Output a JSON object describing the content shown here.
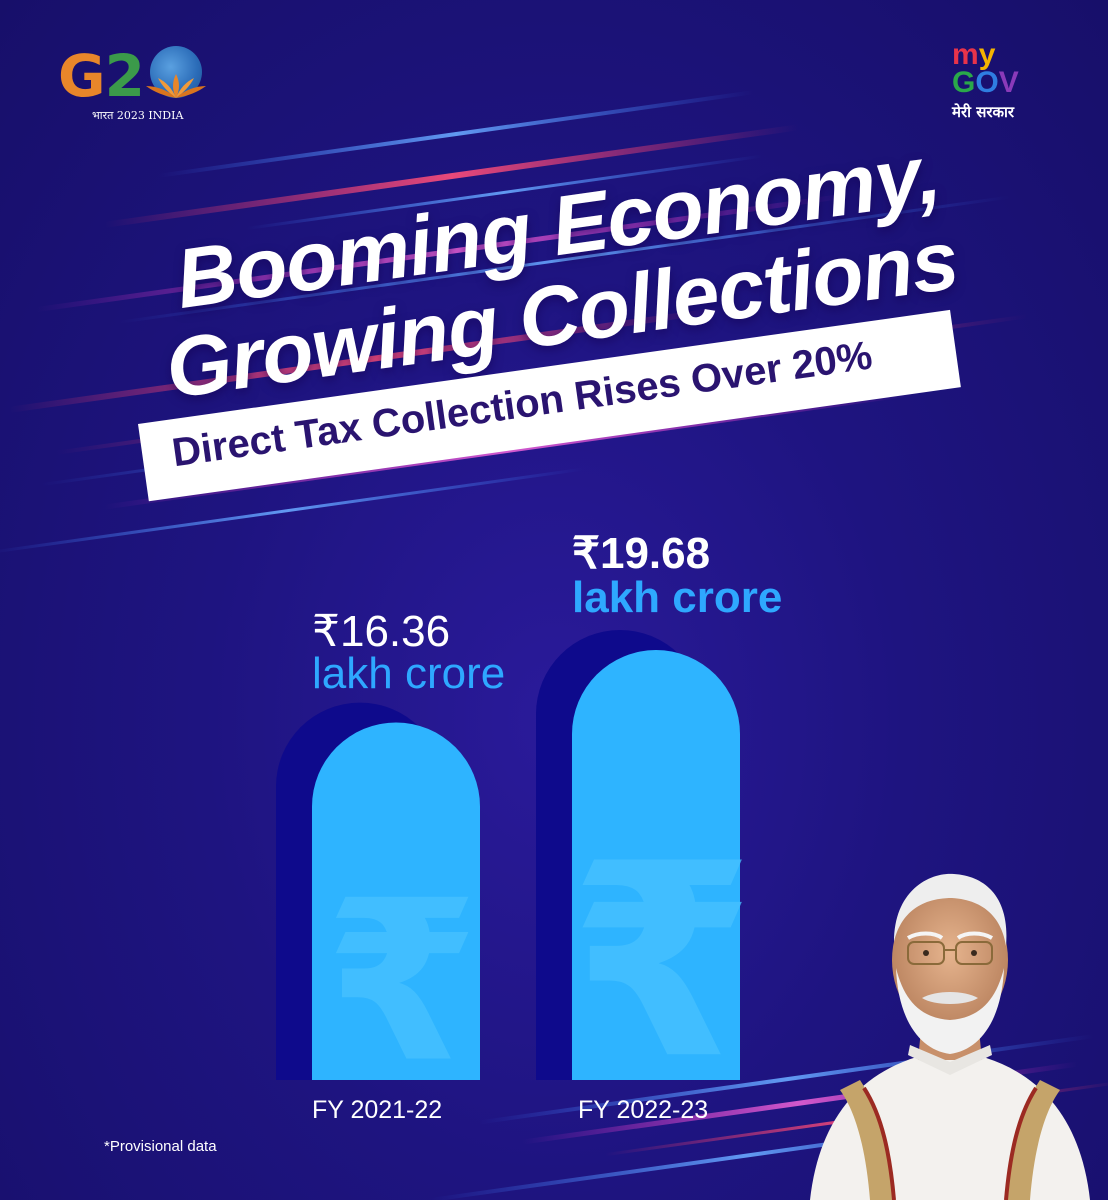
{
  "logos": {
    "g20": {
      "letters_g": "G",
      "letters_2": "2",
      "subtitle": "भारत 2023 INDIA",
      "colors": {
        "g": "#e8862a",
        "two": "#3b9a4a",
        "globe": "#2b6cb8",
        "lotus": "#e8862a"
      }
    },
    "mygov": {
      "my": "my",
      "gov": "GOV",
      "subtitle": "मेरी सरकार",
      "colors": {
        "m": "#e8334a",
        "y": "#f4b400",
        "g": "#2aa84a",
        "o": "#2f7de1",
        "v": "#8a3ab9"
      }
    }
  },
  "headline": {
    "line1": "Booming Economy,",
    "line2": "Growing Collections"
  },
  "banner": {
    "text": "Direct Tax Collection Rises Over 20%"
  },
  "chart_data": {
    "type": "bar",
    "categories": [
      "FY 2021-22",
      "FY 2022-23"
    ],
    "values": [
      16.36,
      19.68
    ],
    "value_labels": [
      {
        "amount": "₹16.36",
        "unit": "lakh crore"
      },
      {
        "amount": "₹19.68",
        "unit": "lakh crore"
      }
    ],
    "ylim": [
      0,
      19.68
    ],
    "bar_glyph": "₹",
    "colors": {
      "bar": "#2eb4ff",
      "bar_shadow": "#0e0a8c",
      "glyph": "#48c2ff",
      "accent_text": "#2ea8ff"
    }
  },
  "footnote": "*Provisional data",
  "portrait": {
    "icon": "person-portrait-icon"
  },
  "theme": {
    "background": "#1e1480",
    "streak_red": "#ff3a6a",
    "streak_blue": "#3a7bff",
    "headline_pink": "#ff2fd0"
  }
}
